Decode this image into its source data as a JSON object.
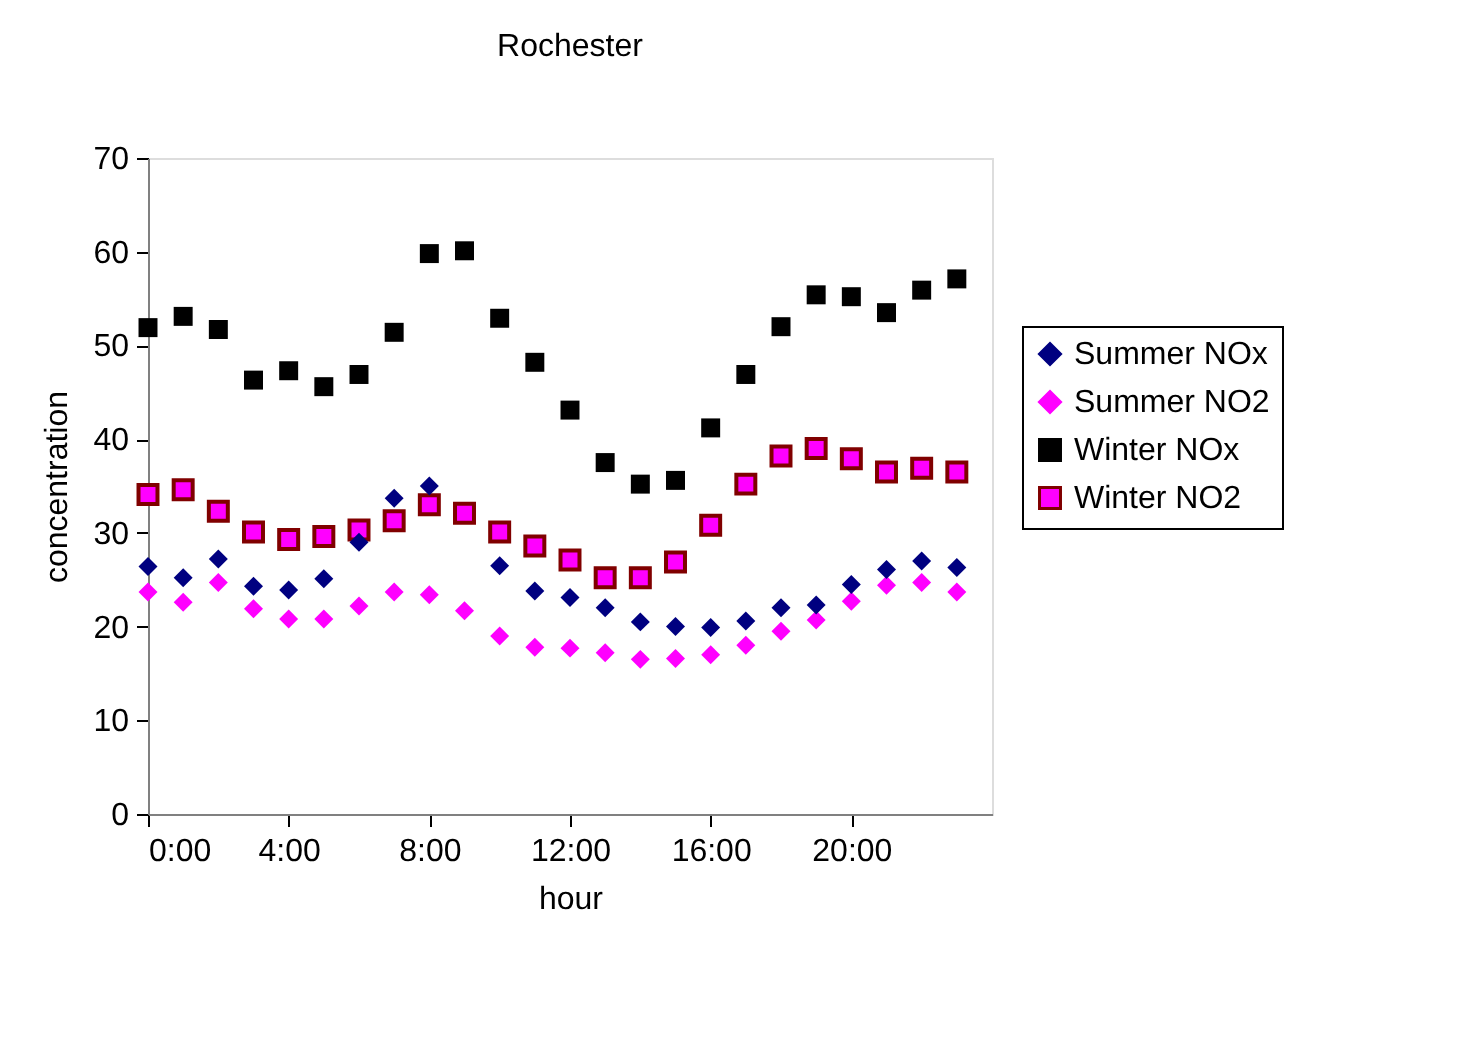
{
  "chart_data": {
    "type": "scatter",
    "title": "Rochester",
    "xlabel": "hour",
    "ylabel": "concentration",
    "x": [
      0,
      1,
      2,
      3,
      4,
      5,
      6,
      7,
      8,
      9,
      10,
      11,
      12,
      13,
      14,
      15,
      16,
      17,
      18,
      19,
      20,
      21,
      22,
      23
    ],
    "xlim": [
      0,
      24
    ],
    "xticks": [
      {
        "value": 0,
        "label": "0:00"
      },
      {
        "value": 4,
        "label": "4:00"
      },
      {
        "value": 8,
        "label": "8:00"
      },
      {
        "value": 12,
        "label": "12:00"
      },
      {
        "value": 16,
        "label": "16:00"
      },
      {
        "value": 20,
        "label": "20:00"
      }
    ],
    "ylim": [
      0,
      70
    ],
    "yticks": [
      0,
      10,
      20,
      30,
      40,
      50,
      60,
      70
    ],
    "grid": false,
    "legend": "right",
    "series": [
      {
        "name": "Summer NOx",
        "color": "#000080",
        "marker": "diamond",
        "values": [
          26.4,
          25.2,
          27.2,
          24.3,
          23.9,
          25.1,
          29.0,
          33.7,
          35.0,
          null,
          26.5,
          23.8,
          23.1,
          22.0,
          20.5,
          20.0,
          19.9,
          20.6,
          22.0,
          22.3,
          24.5,
          26.1,
          27.0,
          26.3
        ]
      },
      {
        "name": "Summer NO2",
        "color": "#ff00ff",
        "marker": "diamond",
        "values": [
          23.7,
          22.6,
          24.7,
          21.9,
          20.8,
          20.8,
          22.2,
          23.7,
          23.4,
          21.7,
          19.0,
          17.8,
          17.7,
          17.2,
          16.5,
          16.6,
          17.0,
          18.0,
          19.5,
          20.7,
          22.7,
          24.4,
          24.7,
          23.7
        ]
      },
      {
        "name": "Winter NOx",
        "color": "#000000",
        "marker": "square",
        "values": [
          51.9,
          53.1,
          51.7,
          46.3,
          47.3,
          45.6,
          46.9,
          51.4,
          59.8,
          60.1,
          52.9,
          48.2,
          43.1,
          37.5,
          35.2,
          35.6,
          41.2,
          46.9,
          52.0,
          55.4,
          55.2,
          53.5,
          55.9,
          57.1
        ]
      },
      {
        "name": "Winter NO2",
        "color": "#ff00ff",
        "marker": "square",
        "values": [
          34.1,
          34.6,
          32.3,
          30.1,
          29.3,
          29.6,
          30.3,
          31.3,
          33.0,
          32.1,
          30.1,
          28.6,
          27.1,
          25.2,
          25.2,
          26.9,
          30.8,
          35.2,
          38.2,
          39.0,
          37.9,
          36.5,
          36.9,
          36.5
        ]
      }
    ]
  }
}
